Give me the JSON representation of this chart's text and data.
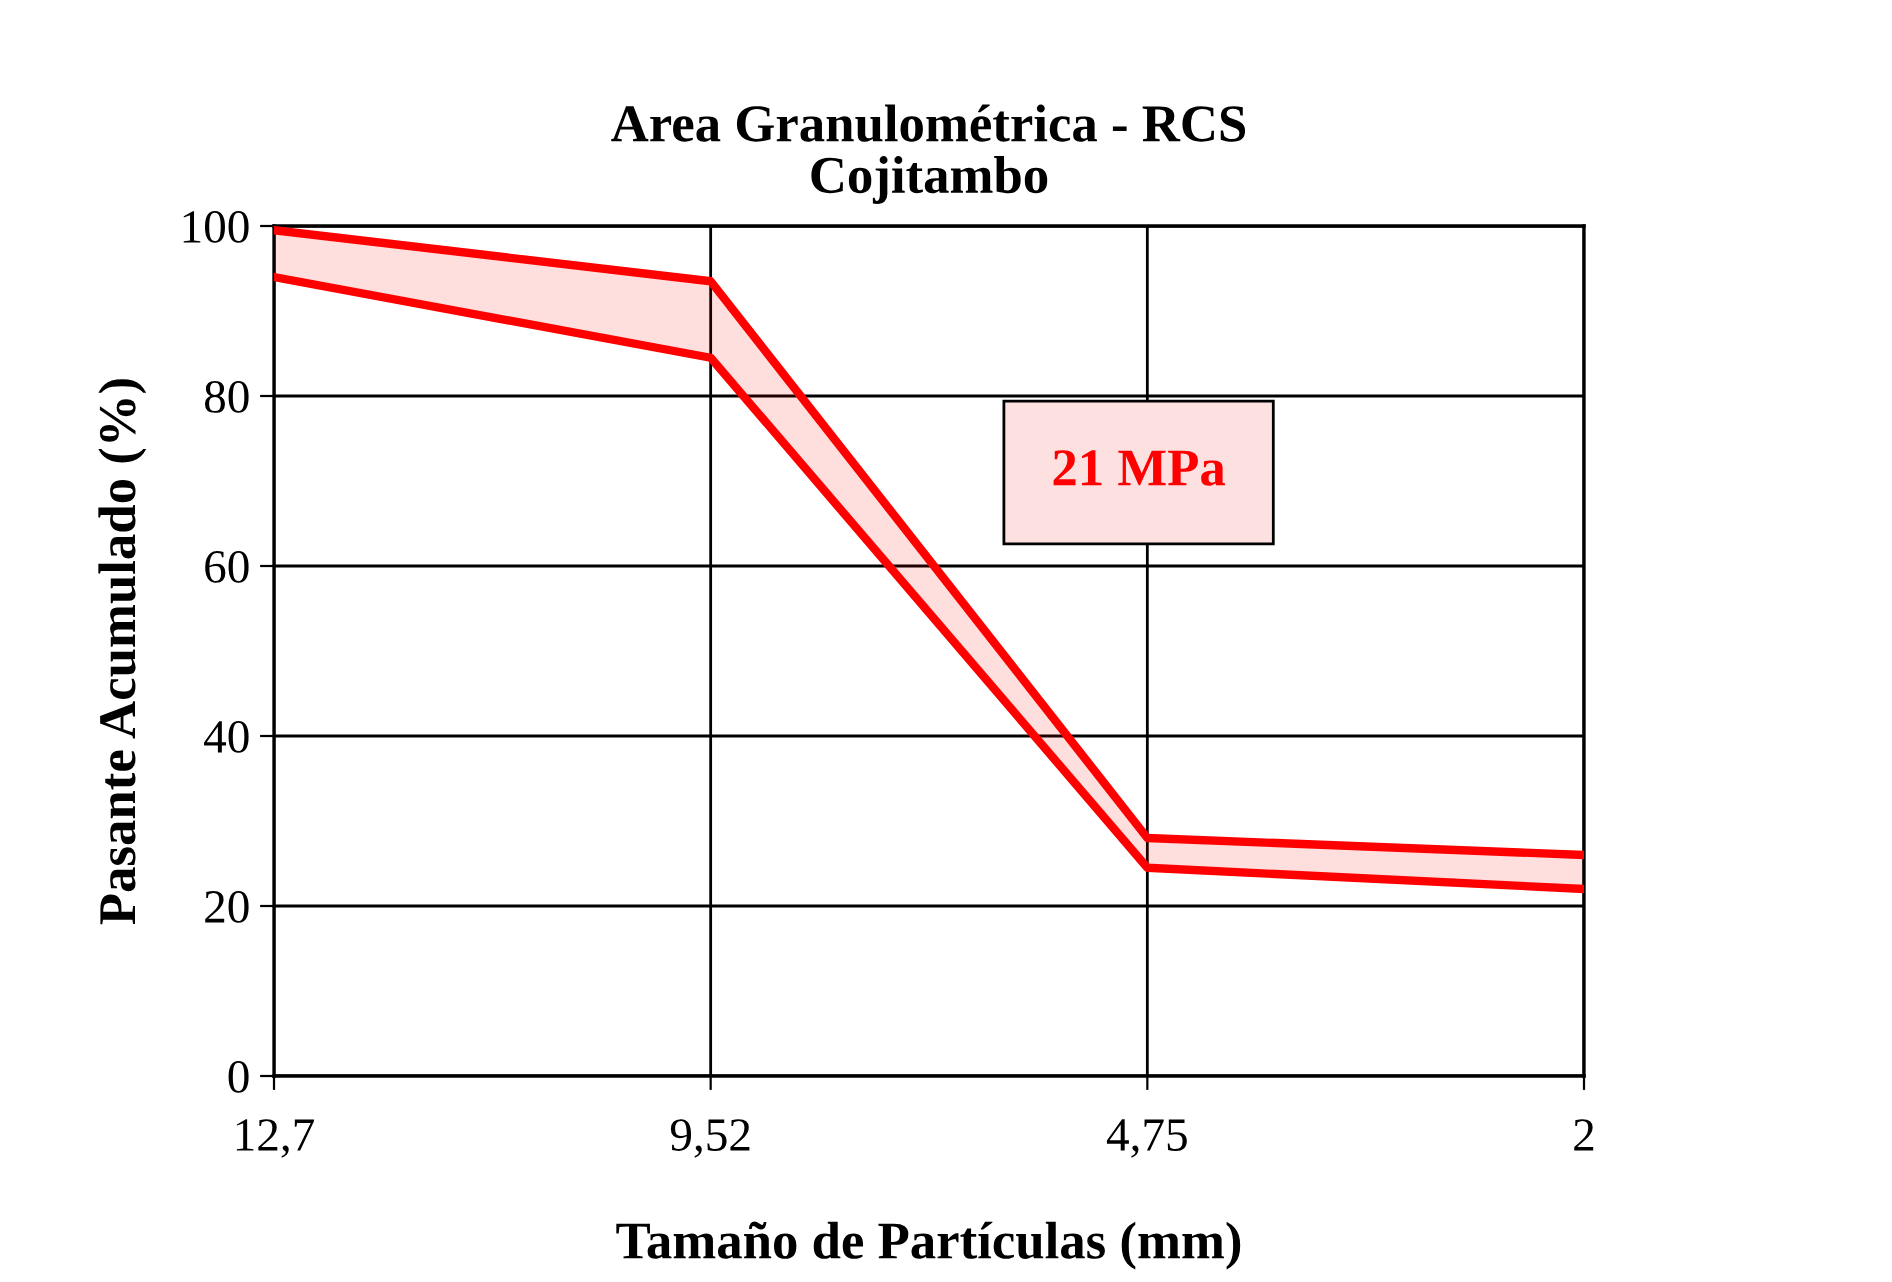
{
  "chart_data": {
    "type": "line",
    "title": "Area Granulométrica - RCS\nCojitambo",
    "xlabel": "Tamaño de Partículas (mm)",
    "ylabel": "Pasante Acumulado (%)",
    "categories": [
      "12,7",
      "9,52",
      "4,75",
      "2"
    ],
    "series": [
      {
        "color": "#ff0000",
        "values": [
          99.5,
          93.5,
          28,
          26
        ],
        "lower": [
          94,
          84.5,
          24.5,
          22
        ],
        "upper": [
          99.5,
          93.5,
          28,
          26
        ]
      },
      {
        "color": "#ff0000",
        "values": [
          94,
          84.5,
          24.5,
          22
        ]
      }
    ],
    "ylim": [
      0,
      100
    ],
    "yticks": [
      0,
      20,
      40,
      60,
      80,
      100
    ],
    "grid": true,
    "annotations": [
      "21 MPa"
    ]
  }
}
